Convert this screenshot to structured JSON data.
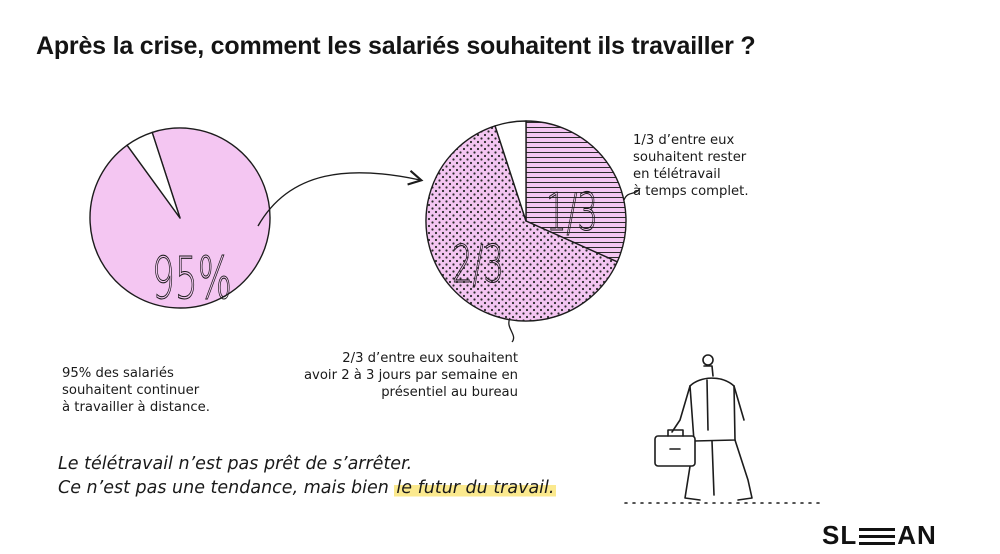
{
  "title": "Après la crise, comment les salariés souhaitent ils travailler ?",
  "chart_data": [
    {
      "type": "pie",
      "slices": [
        {
          "label": "95%",
          "value": 95,
          "color": "#f4c6f2",
          "pattern": "solid"
        },
        {
          "label": "",
          "value": 5,
          "color": "#ffffff",
          "pattern": "solid"
        }
      ]
    },
    {
      "type": "pie",
      "slices": [
        {
          "label": "1/3",
          "value": 31.7,
          "color": "#f4c6f2",
          "pattern": "lines"
        },
        {
          "label": "2/3",
          "value": 63.3,
          "color": "#f4c6f2",
          "pattern": "dots"
        },
        {
          "label": "",
          "value": 5,
          "color": "#ffffff",
          "pattern": "solid"
        }
      ]
    }
  ],
  "notes": {
    "left": [
      "95% des salariés",
      "souhaitent continuer",
      "à travailler à distance."
    ],
    "middle": [
      "2/3 d’entre eux souhaitent",
      "avoir 2 à 3 jours par semaine en",
      "présentiel au bureau"
    ],
    "right": [
      "1/3 d’entre eux",
      "souhaitent rester",
      "en télétravail",
      "à temps complet."
    ]
  },
  "quote": {
    "line1": "Le télétravail n’est pas prêt de s’arrêter.",
    "line2_start": "Ce n’est pas une tendance, mais bien ",
    "line2_highlight": "le futur du travail."
  },
  "logo": {
    "left": "SL",
    "right": "AN"
  },
  "colors": {
    "pink": "#f4c6f2",
    "ink": "#1c1c1c",
    "highlight": "#fbe98e"
  }
}
